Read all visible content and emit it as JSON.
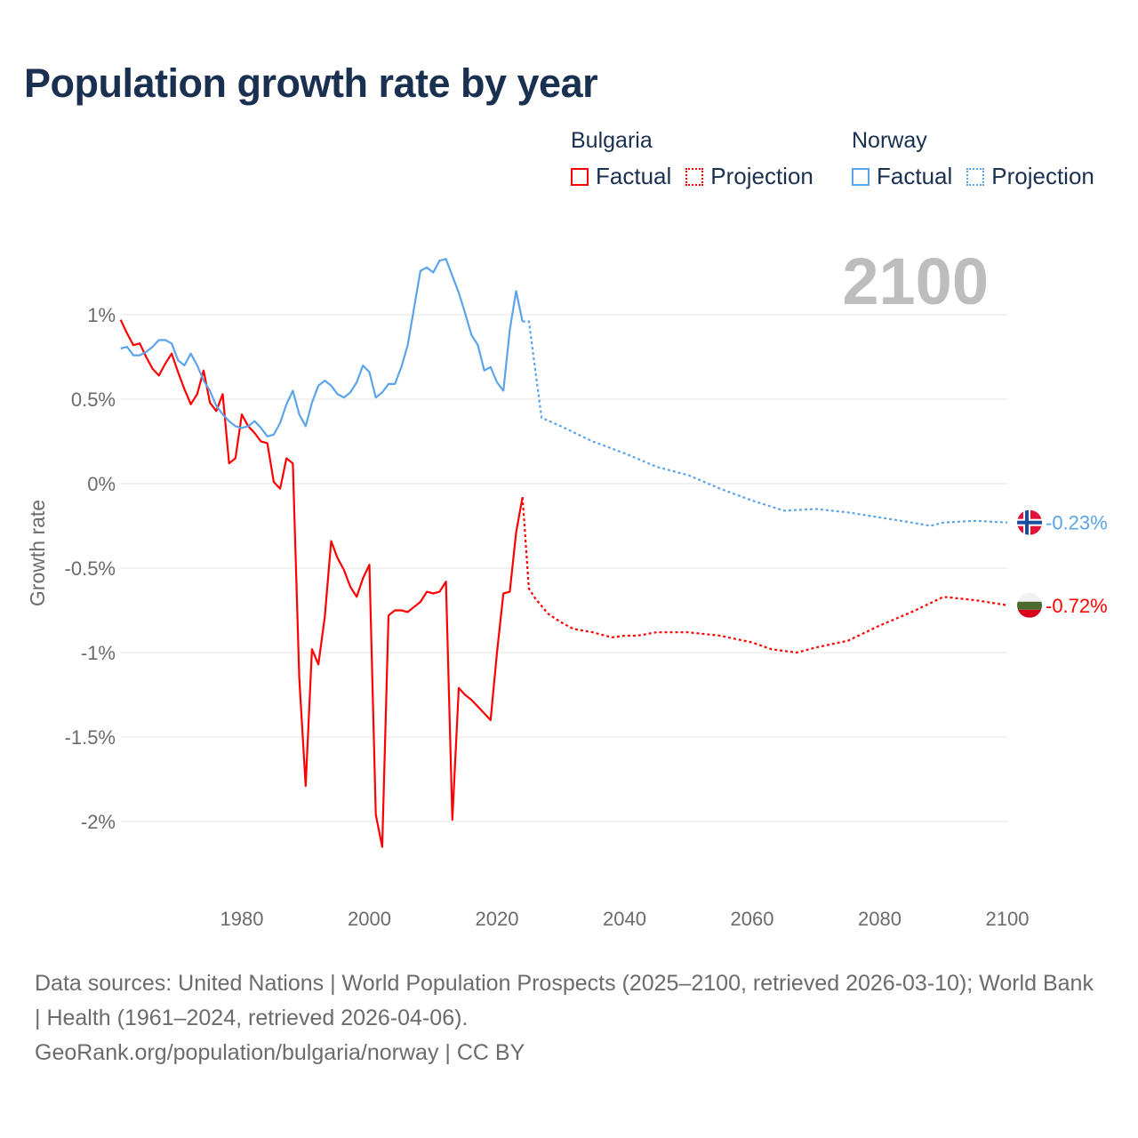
{
  "title": "Population growth rate by year",
  "legend": {
    "groups": [
      {
        "name": "Bulgaria",
        "factual": "Factual",
        "projection": "Projection",
        "color": "#ff0000"
      },
      {
        "name": "Norway",
        "factual": "Factual",
        "projection": "Projection",
        "color": "#5ba4ea"
      }
    ]
  },
  "footer": {
    "sources": "Data sources: United Nations | World Population Prospects (2025–2100, retrieved 2026-03-10); World Bank | Health (1961–2024, retrieved 2026-04-06).",
    "credit": "GeoRank.org/population/bulgaria/norway | CC BY"
  },
  "chart_data": {
    "type": "line",
    "title": "Population growth rate by year",
    "year_label": "2100",
    "xlabel": "",
    "ylabel": "Growth rate",
    "xlim": [
      1961,
      2100
    ],
    "ylim": [
      -2.3,
      1.4
    ],
    "x_ticks": [
      1980,
      2000,
      2020,
      2040,
      2060,
      2080,
      2100
    ],
    "y_ticks": [
      1,
      0.5,
      0,
      -0.5,
      -1,
      -1.5,
      -2
    ],
    "y_tick_labels": [
      "1%",
      "0.5%",
      "0%",
      "-0.5%",
      "-1%",
      "-1.5%",
      "-2%"
    ],
    "grid": true,
    "series": [
      {
        "name": "Bulgaria",
        "color": "#ff0000",
        "end_label": "-0.72%",
        "flag": "bulgaria",
        "factual": {
          "x": [
            1961,
            1962,
            1963,
            1964,
            1965,
            1966,
            1967,
            1968,
            1969,
            1970,
            1971,
            1972,
            1973,
            1974,
            1975,
            1976,
            1977,
            1978,
            1979,
            1980,
            1981,
            1982,
            1983,
            1984,
            1985,
            1986,
            1987,
            1988,
            1989,
            1990,
            1991,
            1992,
            1993,
            1994,
            1995,
            1996,
            1997,
            1998,
            1999,
            2000,
            2001,
            2002,
            2003,
            2004,
            2005,
            2006,
            2007,
            2008,
            2009,
            2010,
            2011,
            2012,
            2013,
            2014,
            2015,
            2016,
            2017,
            2018,
            2019,
            2020,
            2021,
            2022,
            2023,
            2024
          ],
          "y": [
            0.97,
            0.89,
            0.82,
            0.83,
            0.75,
            0.68,
            0.64,
            0.71,
            0.77,
            0.66,
            0.56,
            0.47,
            0.53,
            0.67,
            0.48,
            0.43,
            0.53,
            0.12,
            0.15,
            0.41,
            0.34,
            0.3,
            0.25,
            0.24,
            0.01,
            -0.03,
            0.15,
            0.12,
            -1.15,
            -1.79,
            -0.98,
            -1.07,
            -0.79,
            -0.34,
            -0.44,
            -0.51,
            -0.61,
            -0.67,
            -0.56,
            -0.48,
            -1.96,
            -2.15,
            -0.78,
            -0.75,
            -0.75,
            -0.76,
            -0.73,
            -0.7,
            -0.64,
            -0.65,
            -0.64,
            -0.58,
            -1.99,
            -1.21,
            -1.25,
            -1.28,
            -1.32,
            -1.36,
            -1.4,
            -1.0,
            -0.65,
            -0.64,
            -0.29,
            -0.08
          ]
        },
        "projection": {
          "x": [
            2024,
            2025,
            2026,
            2028,
            2030,
            2032,
            2035,
            2038,
            2040,
            2042,
            2045,
            2050,
            2055,
            2060,
            2063,
            2067,
            2070,
            2075,
            2080,
            2085,
            2090,
            2095,
            2100
          ],
          "y": [
            -0.08,
            -0.62,
            -0.68,
            -0.77,
            -0.82,
            -0.86,
            -0.88,
            -0.91,
            -0.9,
            -0.9,
            -0.88,
            -0.88,
            -0.9,
            -0.94,
            -0.98,
            -1.0,
            -0.97,
            -0.93,
            -0.84,
            -0.76,
            -0.67,
            -0.69,
            -0.72
          ]
        }
      },
      {
        "name": "Norway",
        "color": "#5ba4ea",
        "end_label": "-0.23%",
        "flag": "norway",
        "factual": {
          "x": [
            1961,
            1962,
            1963,
            1964,
            1965,
            1966,
            1967,
            1968,
            1969,
            1970,
            1971,
            1972,
            1973,
            1974,
            1975,
            1976,
            1977,
            1978,
            1979,
            1980,
            1981,
            1982,
            1983,
            1984,
            1985,
            1986,
            1987,
            1988,
            1989,
            1990,
            1991,
            1992,
            1993,
            1994,
            1995,
            1996,
            1997,
            1998,
            1999,
            2000,
            2001,
            2002,
            2003,
            2004,
            2005,
            2006,
            2007,
            2008,
            2009,
            2010,
            2011,
            2012,
            2013,
            2014,
            2015,
            2016,
            2017,
            2018,
            2019,
            2020,
            2021,
            2022,
            2023,
            2024
          ],
          "y": [
            0.8,
            0.81,
            0.76,
            0.76,
            0.78,
            0.81,
            0.85,
            0.85,
            0.83,
            0.73,
            0.7,
            0.77,
            0.7,
            0.61,
            0.55,
            0.46,
            0.41,
            0.37,
            0.34,
            0.33,
            0.34,
            0.37,
            0.33,
            0.28,
            0.29,
            0.36,
            0.47,
            0.55,
            0.41,
            0.34,
            0.48,
            0.58,
            0.61,
            0.58,
            0.53,
            0.51,
            0.54,
            0.6,
            0.7,
            0.66,
            0.51,
            0.54,
            0.59,
            0.59,
            0.69,
            0.82,
            1.04,
            1.26,
            1.28,
            1.25,
            1.32,
            1.33,
            1.23,
            1.13,
            1.01,
            0.88,
            0.82,
            0.67,
            0.69,
            0.6,
            0.55,
            0.91,
            1.14,
            0.96
          ]
        },
        "projection": {
          "x": [
            2024,
            2025,
            2027,
            2030,
            2035,
            2040,
            2045,
            2050,
            2055,
            2060,
            2065,
            2070,
            2075,
            2080,
            2085,
            2088,
            2090,
            2095,
            2100
          ],
          "y": [
            0.96,
            0.96,
            0.39,
            0.34,
            0.25,
            0.18,
            0.1,
            0.05,
            -0.03,
            -0.1,
            -0.16,
            -0.15,
            -0.17,
            -0.2,
            -0.23,
            -0.25,
            -0.23,
            -0.22,
            -0.23
          ]
        }
      }
    ]
  }
}
